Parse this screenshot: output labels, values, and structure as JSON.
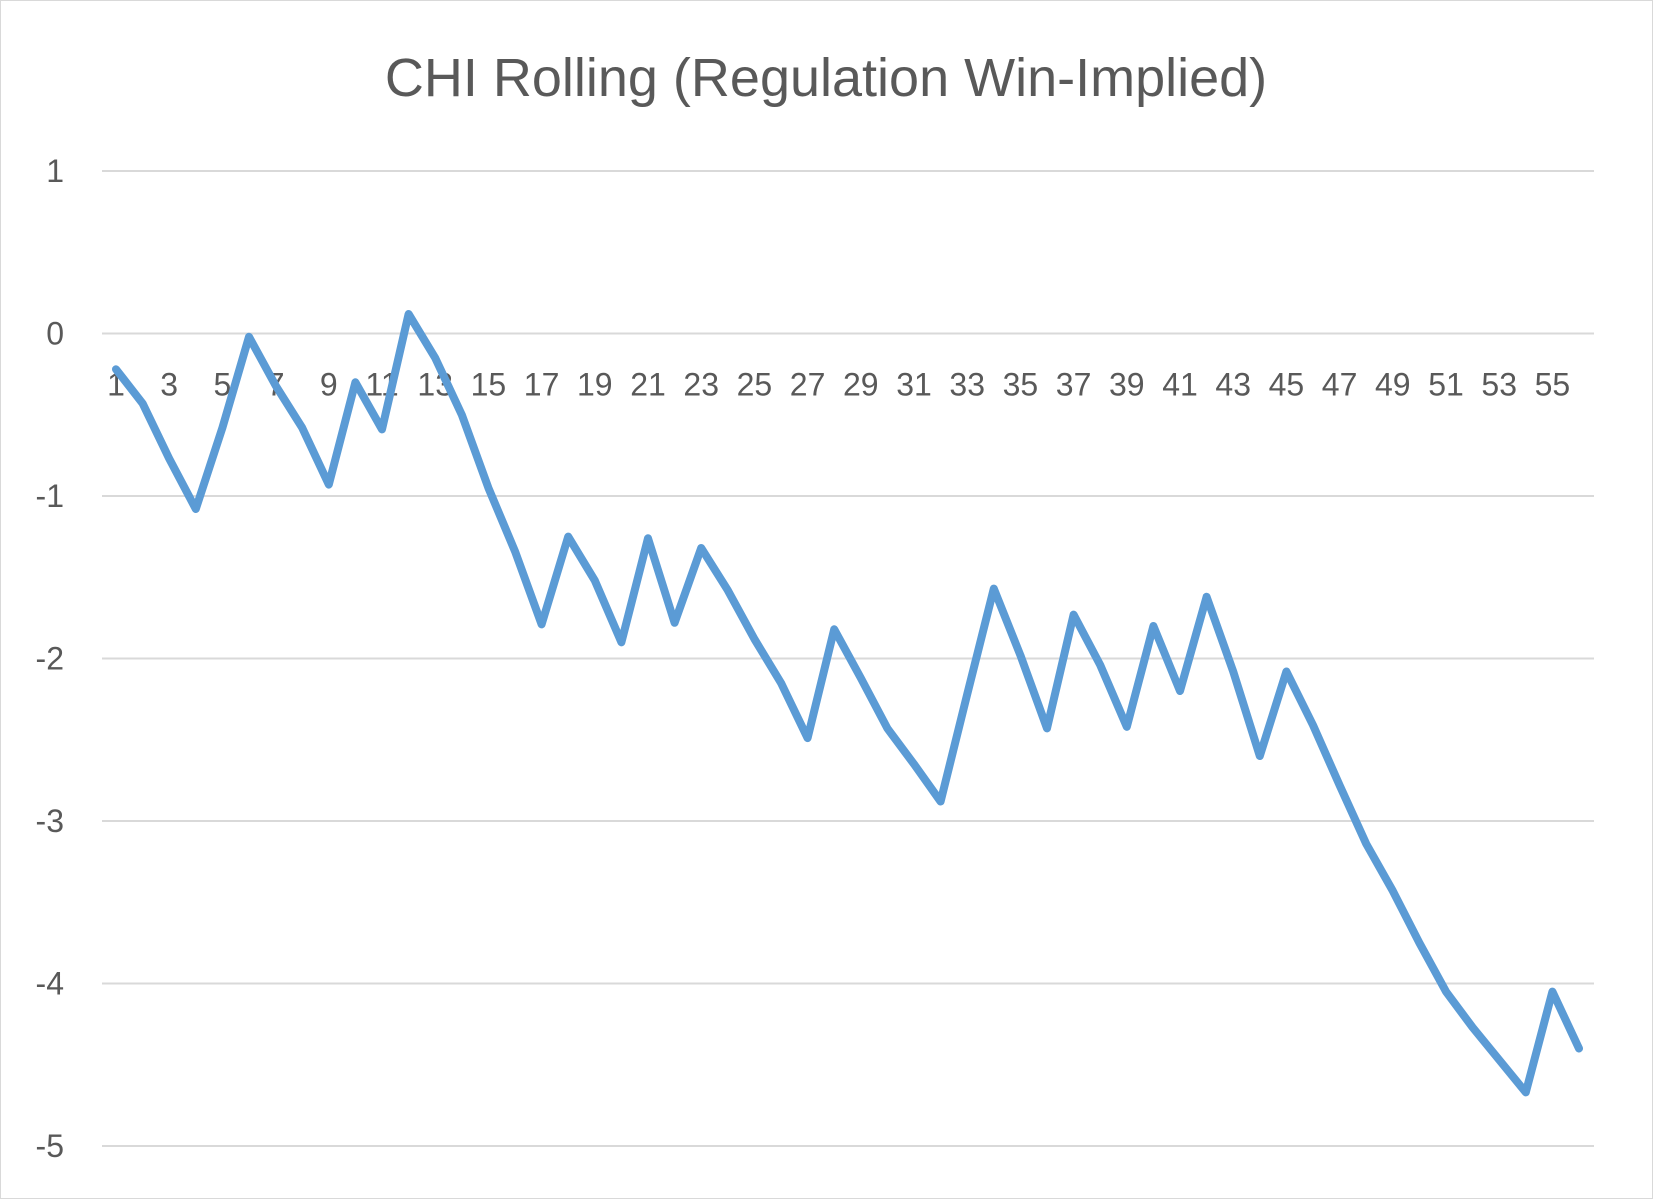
{
  "chart_data": {
    "type": "line",
    "title": "CHI Rolling (Regulation Win-Implied)",
    "xlabel": "",
    "ylabel": "",
    "ylim": [
      -5,
      1
    ],
    "yticks": [
      "1",
      "0",
      "-1",
      "-2",
      "-3",
      "-4",
      "-5"
    ],
    "x": [
      1,
      2,
      3,
      4,
      5,
      6,
      7,
      8,
      9,
      10,
      11,
      12,
      13,
      14,
      15,
      16,
      17,
      18,
      19,
      20,
      21,
      22,
      23,
      24,
      25,
      26,
      27,
      28,
      29,
      30,
      31,
      32,
      33,
      34,
      35,
      36,
      37,
      38,
      39,
      40,
      41,
      42,
      43,
      44,
      45,
      46,
      47,
      48,
      49,
      50,
      51,
      52,
      53,
      54,
      55,
      56
    ],
    "xtick_labels": [
      "1",
      "3",
      "5",
      "7",
      "9",
      "11",
      "13",
      "15",
      "17",
      "19",
      "21",
      "23",
      "25",
      "27",
      "29",
      "31",
      "33",
      "35",
      "37",
      "39",
      "41",
      "43",
      "45",
      "47",
      "49",
      "51",
      "53",
      "55"
    ],
    "series": [
      {
        "color": "#5b9bd5",
        "values": [
          -0.22,
          -0.43,
          -0.77,
          -1.08,
          -0.58,
          -0.02,
          -0.32,
          -0.58,
          -0.93,
          -0.3,
          -0.59,
          0.12,
          -0.15,
          -0.5,
          -0.95,
          -1.34,
          -1.79,
          -1.25,
          -1.52,
          -1.9,
          -1.26,
          -1.78,
          -1.32,
          -1.58,
          -1.88,
          -2.15,
          -2.49,
          -1.82,
          -2.12,
          -2.43,
          -2.65,
          -2.88,
          -2.22,
          -1.57,
          -1.98,
          -2.43,
          -1.73,
          -2.04,
          -2.42,
          -1.8,
          -2.2,
          -1.62,
          -2.08,
          -2.6,
          -2.08,
          -2.41,
          -2.78,
          -3.14,
          -3.43,
          -3.75,
          -4.05,
          -4.27,
          -4.47,
          -4.67,
          -4.05,
          -4.4
        ]
      }
    ],
    "grid": true,
    "legend": "none"
  }
}
